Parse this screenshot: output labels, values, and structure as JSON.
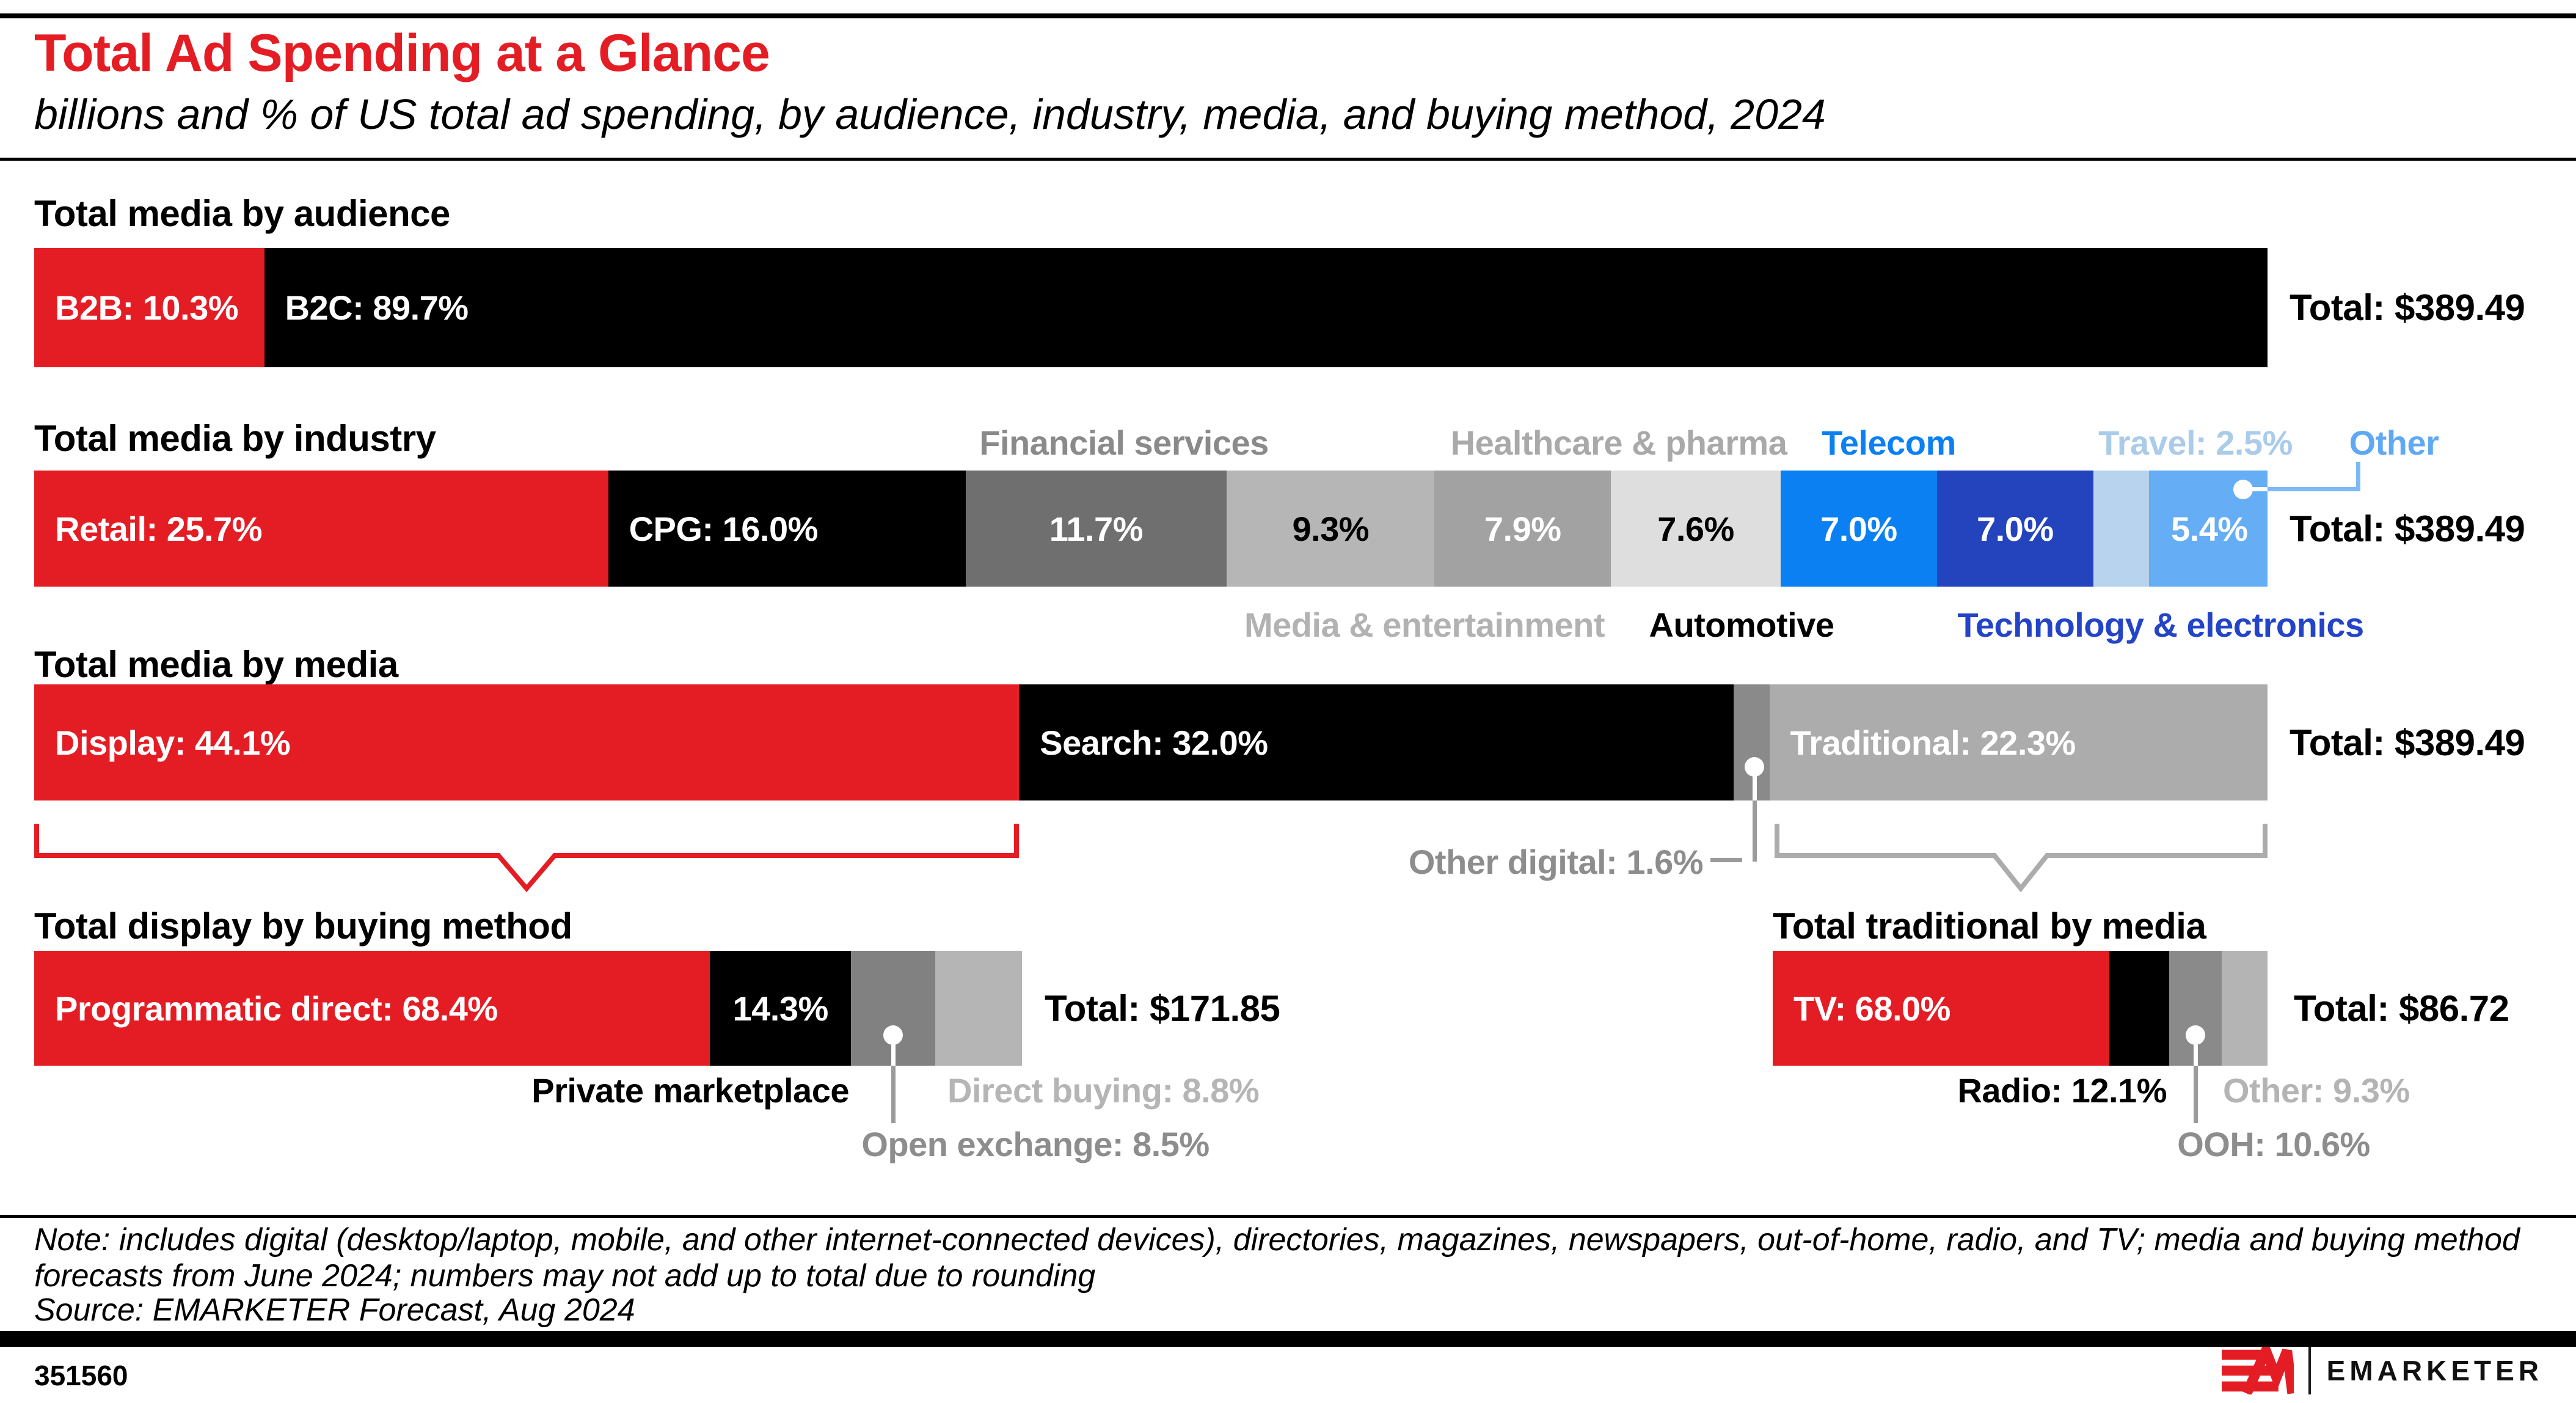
{
  "title": "Total Ad Spending at a Glance",
  "subtitle": "billions and % of US total ad spending, by audience, industry, media, and buying method, 2024",
  "note": "Note: includes digital (desktop/laptop, mobile, and other internet-connected devices), directories, magazines, newspapers, out-of-home, radio, and TV; media and buying method\nforecasts from June 2024; numbers may not add up to total due to rounding",
  "source": "Source: EMARKETER Forecast, Aug 2024",
  "chart_id": "351560",
  "brand": {
    "name": "EMARKETER"
  },
  "colors": {
    "red": "#e41d25",
    "black": "#000000",
    "blue": "#0b80f2",
    "dark_blue": "#2444bd",
    "light_blue": "#65adf5",
    "pale_blue": "#b7d3ed",
    "traditional_gray": "#acacac",
    "callout_gray": "#9b9b9b"
  },
  "chart_data": [
    {
      "type": "bar",
      "id": "audience",
      "title": "Total media by audience",
      "total_label": "Total: $389.49",
      "total_value_billions": 389.49,
      "segments": [
        {
          "name": "B2B",
          "value": 10.3,
          "bar_label": "B2B: 10.3%",
          "color": "#e41d25",
          "text_color": "#ffffff",
          "align": "left"
        },
        {
          "name": "B2C",
          "value": 89.7,
          "bar_label": "B2C: 89.7%",
          "color": "#000000",
          "text_color": "#ffffff",
          "align": "left"
        }
      ]
    },
    {
      "type": "bar",
      "id": "industry",
      "title": "Total media by industry",
      "total_label": "Total: $389.49",
      "total_value_billions": 389.49,
      "segments": [
        {
          "name": "Retail",
          "value": 25.7,
          "bar_label": "Retail: 25.7%",
          "color": "#e41d25",
          "text_color": "#ffffff",
          "align": "left"
        },
        {
          "name": "CPG",
          "value": 16.0,
          "bar_label": "CPG: 16.0%",
          "color": "#000000",
          "text_color": "#ffffff",
          "align": "left"
        },
        {
          "name": "Financial services",
          "value": 11.7,
          "bar_label": "11.7%",
          "color": "#6f6f6f",
          "text_color": "#ffffff"
        },
        {
          "name": "Media & entertainment",
          "value": 9.3,
          "bar_label": "9.3%",
          "color": "#b6b6b6",
          "text_color": "#000000"
        },
        {
          "name": "Healthcare & pharma",
          "value": 7.9,
          "bar_label": "7.9%",
          "color": "#a2a2a2",
          "text_color": "#ffffff"
        },
        {
          "name": "Automotive",
          "value": 7.6,
          "bar_label": "7.6%",
          "color": "#dedede",
          "text_color": "#000000"
        },
        {
          "name": "Telecom",
          "value": 7.0,
          "bar_label": "7.0%",
          "color": "#0b80f2",
          "text_color": "#ffffff"
        },
        {
          "name": "Technology & electronics",
          "value": 7.0,
          "bar_label": "7.0%",
          "color": "#2444bd",
          "text_color": "#ffffff"
        },
        {
          "name": "Travel",
          "value": 2.5,
          "bar_label": "",
          "color": "#b7d3ed"
        },
        {
          "name": "Other",
          "value": 5.4,
          "bar_label": "5.4%",
          "color": "#65adf5",
          "text_color": "#ffffff"
        }
      ],
      "labels_above": [
        {
          "text": "Financial services",
          "color": "#8a8a8a"
        },
        {
          "text": "Healthcare & pharma",
          "color": "#a9a9a9"
        },
        {
          "text": "Telecom",
          "color": "#0b80f2"
        },
        {
          "text": "Travel: 2.5%",
          "color": "#aacbea"
        },
        {
          "text": "Other",
          "color": "#5fa9f4"
        }
      ],
      "labels_below": [
        {
          "text": "Media & entertainment",
          "color": "#b2b2b2"
        },
        {
          "text": "Automotive",
          "color": "#000000"
        },
        {
          "text": "Technology & electronics",
          "color": "#2444c8"
        }
      ]
    },
    {
      "type": "bar",
      "id": "media",
      "title": "Total media by media",
      "total_label": "Total: $389.49",
      "total_value_billions": 389.49,
      "segments": [
        {
          "name": "Display",
          "value": 44.1,
          "bar_label": "Display: 44.1%",
          "color": "#e41d25",
          "text_color": "#ffffff",
          "align": "left"
        },
        {
          "name": "Search",
          "value": 32.0,
          "bar_label": "Search: 32.0%",
          "color": "#000000",
          "text_color": "#ffffff",
          "align": "left"
        },
        {
          "name": "Other digital",
          "value": 1.6,
          "bar_label": "",
          "color": "#8a8a8a"
        },
        {
          "name": "Traditional",
          "value": 22.3,
          "bar_label": "Traditional: 22.3%",
          "color": "#acacac",
          "text_color": "#ffffff",
          "align": "left"
        }
      ],
      "callout": {
        "text": "Other digital: 1.6%",
        "color": "#8d8d8d"
      }
    },
    {
      "type": "bar",
      "id": "display-buying-method",
      "title": "Total display by buying method",
      "total_label": "Total: $171.85",
      "total_value_billions": 171.85,
      "segments": [
        {
          "name": "Programmatic direct",
          "value": 68.4,
          "bar_label": "Programmatic direct: 68.4%",
          "color": "#e41d25",
          "text_color": "#ffffff",
          "align": "left"
        },
        {
          "name": "Private marketplace",
          "value": 14.3,
          "bar_label": "14.3%",
          "color": "#000000",
          "text_color": "#ffffff"
        },
        {
          "name": "Open exchange",
          "value": 8.5,
          "bar_label": "",
          "color": "#818181"
        },
        {
          "name": "Direct buying",
          "value": 8.8,
          "bar_label": "",
          "color": "#b5b5b5"
        }
      ],
      "labels_below": [
        {
          "text": "Private marketplace",
          "color": "#000000"
        },
        {
          "text": "Direct buying: 8.8%",
          "color": "#b5b5b5"
        },
        {
          "text": "Open exchange: 8.5%",
          "color": "#8d8d8d"
        }
      ]
    },
    {
      "type": "bar",
      "id": "traditional-media",
      "title": "Total traditional by media",
      "total_label": "Total: $86.72",
      "total_value_billions": 86.72,
      "segments": [
        {
          "name": "TV",
          "value": 68.0,
          "bar_label": "TV: 68.0%",
          "color": "#e41d25",
          "text_color": "#ffffff",
          "align": "left"
        },
        {
          "name": "Radio",
          "value": 12.1,
          "bar_label": "",
          "color": "#000000"
        },
        {
          "name": "OOH",
          "value": 10.6,
          "bar_label": "",
          "color": "#8a8a8a"
        },
        {
          "name": "Other",
          "value": 9.3,
          "bar_label": "",
          "color": "#b4b4b4"
        }
      ],
      "labels_below": [
        {
          "text": "Radio: 12.1%",
          "color": "#000000"
        },
        {
          "text": "Other: 9.3%",
          "color": "#b4b4b4"
        },
        {
          "text": "OOH: 10.6%",
          "color": "#8d8d8d"
        }
      ]
    }
  ]
}
